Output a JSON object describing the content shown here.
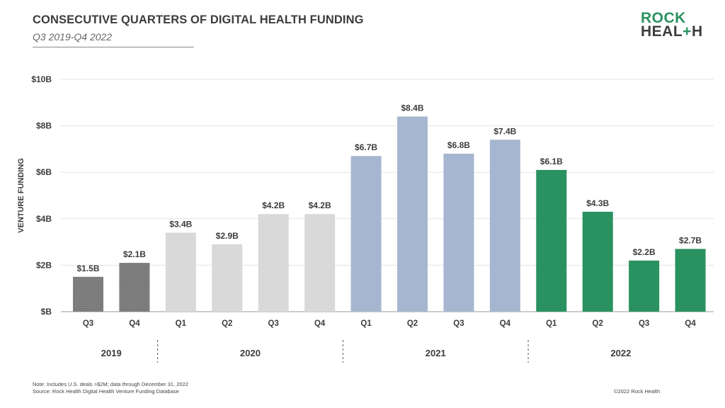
{
  "header": {
    "title": "CONSECUTIVE QUARTERS OF DIGITAL HEALTH FUNDING",
    "subtitle": "Q3 2019-Q4 2022"
  },
  "logo": {
    "line1": "ROCK",
    "line2_a": "HEAL",
    "line2_b": "+",
    "line2_c": "H"
  },
  "footer": {
    "note": "Note: Includes U.S. deals >$2M; data through December 31, 2022",
    "source": "Source: Rock Health Digital Health Venture Funding Database",
    "copyright": "©2022 Rock Health"
  },
  "chart_data": {
    "type": "bar",
    "ylabel": "VENTURE FUNDING",
    "ylim": [
      0,
      10
    ],
    "yticks": [
      "$B",
      "$2B",
      "$4B",
      "$6B",
      "$8B",
      "$10B"
    ],
    "grid": true,
    "categories": [
      "Q3",
      "Q4",
      "Q1",
      "Q2",
      "Q3",
      "Q4",
      "Q1",
      "Q2",
      "Q3",
      "Q4",
      "Q1",
      "Q2",
      "Q3",
      "Q4"
    ],
    "values": [
      1.5,
      2.1,
      3.4,
      2.9,
      4.2,
      4.2,
      6.7,
      8.4,
      6.8,
      7.4,
      6.1,
      4.3,
      2.2,
      2.7
    ],
    "labels": [
      "$1.5B",
      "$2.1B",
      "$3.4B",
      "$2.9B",
      "$4.2B",
      "$4.2B",
      "$6.7B",
      "$8.4B",
      "$6.8B",
      "$7.4B",
      "$6.1B",
      "$4.3B",
      "$2.2B",
      "$2.7B"
    ],
    "years": [
      {
        "label": "2019",
        "count": 2,
        "color": "#7f7f7f",
        "pattern": true
      },
      {
        "label": "2020",
        "count": 4,
        "color": "#d9d9d9",
        "pattern": false
      },
      {
        "label": "2021",
        "count": 4,
        "color": "#a6b6d0",
        "pattern": false
      },
      {
        "label": "2022",
        "count": 4,
        "color": "#2a9160",
        "pattern": false
      }
    ]
  }
}
